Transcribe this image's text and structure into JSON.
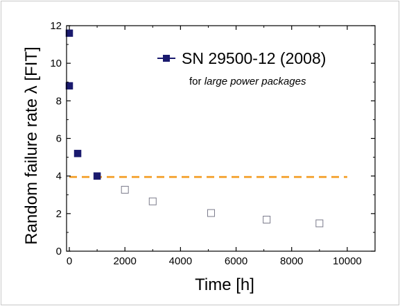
{
  "chart_data": {
    "type": "scatter",
    "title": "",
    "xlabel": "Time  [h]",
    "ylabel": "Random failure rate λ  [FIT]",
    "xlim": [
      -100,
      11000
    ],
    "ylim": [
      0,
      12
    ],
    "xticks": [
      0,
      2000,
      4000,
      6000,
      8000,
      10000
    ],
    "yticks": [
      0,
      2,
      4,
      6,
      8,
      10,
      12
    ],
    "grid": false,
    "legend_position": "top-right",
    "series": [
      {
        "name": "SN 29500-12 (2008)",
        "marker": "filled-square",
        "color": "#1a1a6e",
        "x": [
          0,
          0,
          300,
          1000
        ],
        "y": [
          11.6,
          8.8,
          5.2,
          4.0
        ]
      },
      {
        "marker": "open-square",
        "color": "#7a7a8a",
        "x": [
          2000,
          3000,
          5100,
          7100,
          9000
        ],
        "y": [
          3.27,
          2.65,
          2.03,
          1.68,
          1.48
        ]
      }
    ],
    "reference_line": {
      "y": 3.95,
      "x_range": [
        0,
        10000
      ],
      "style": "dashed",
      "color": "#f39a1e"
    },
    "annotation": {
      "prefix": "for ",
      "emphasis": "large power packages"
    }
  }
}
